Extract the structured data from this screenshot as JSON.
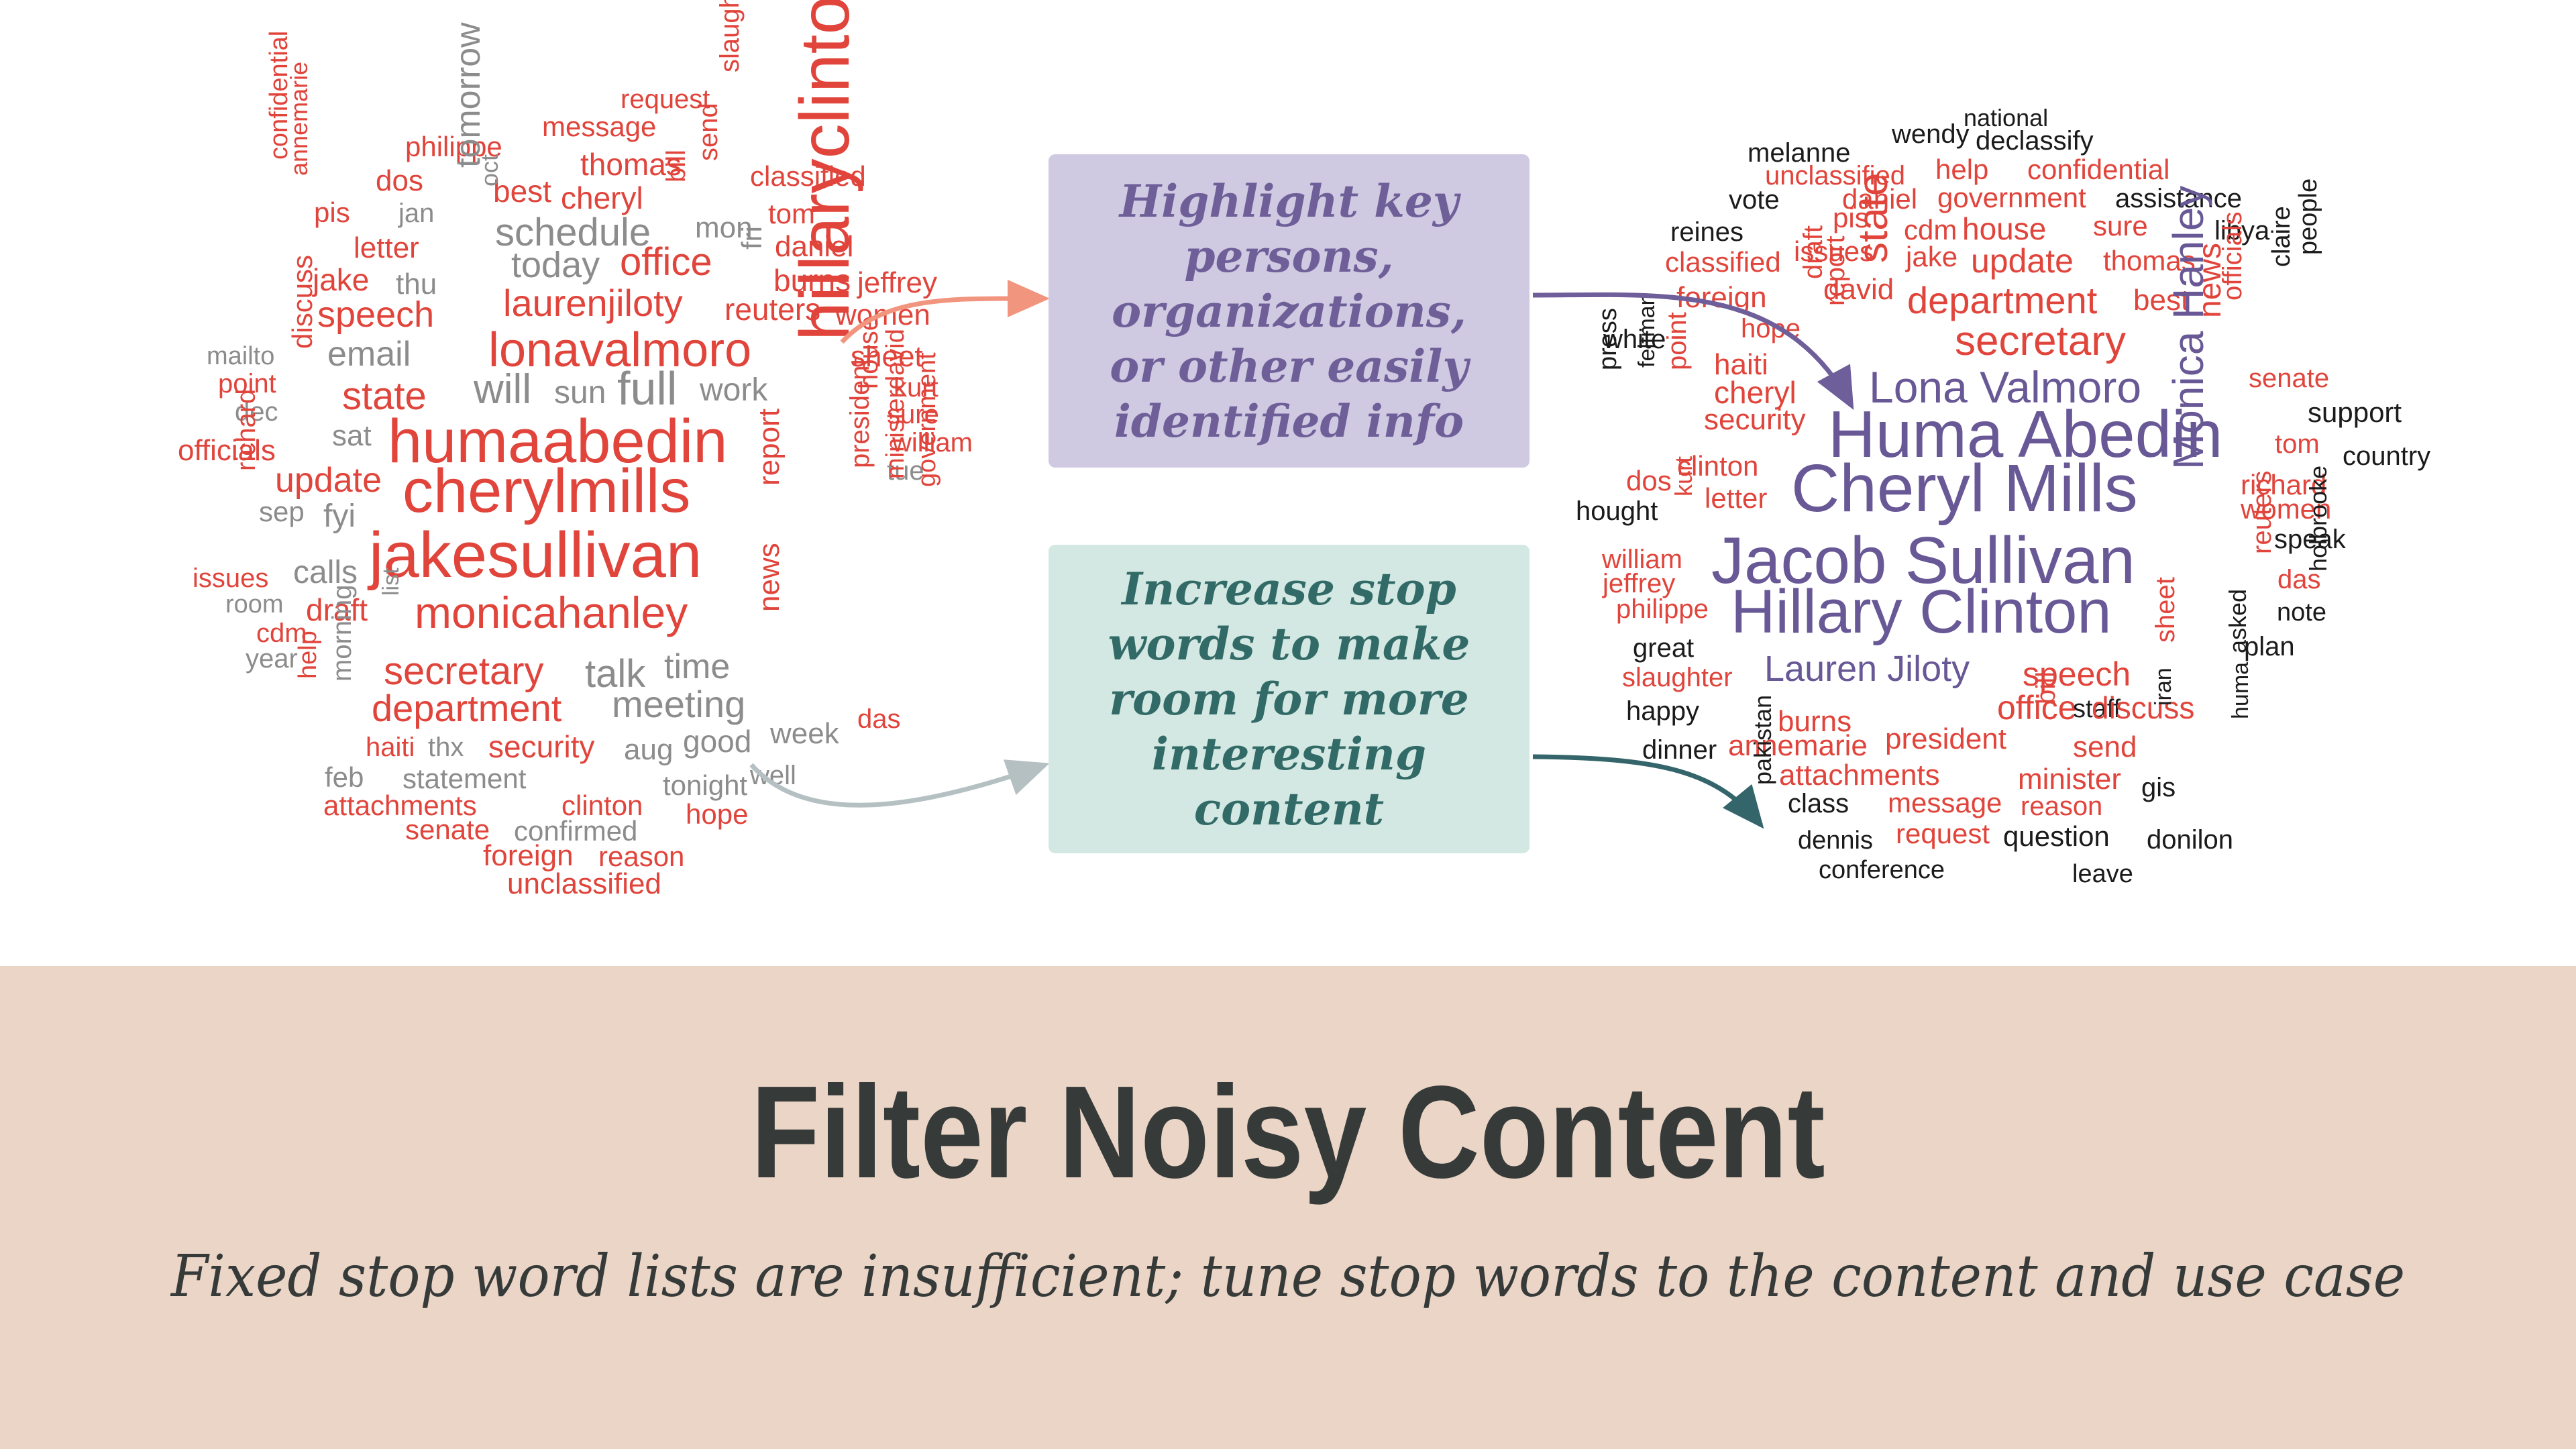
{
  "colors": {
    "cloud_red": "#e0443b",
    "cloud_gray": "#8c8c8c",
    "cloud_purple": "#685896",
    "cloud_black": "#1b1b1b",
    "highlight_box": "#cfc9e2",
    "highlight_text": "#6f5f98",
    "stop_box": "#d3e8e2",
    "stop_text": "#326a67",
    "footer_bg": "#ebd5c6",
    "footer_text": "#363b3a",
    "arrow_salmon": "#f2957f",
    "arrow_gray": "#b5c0c2",
    "arrow_purple": "#6e5e9a",
    "arrow_teal": "#33656a"
  },
  "callouts": {
    "highlight": "Highlight key\npersons,\norganizations,\nor other easily\nidentified info",
    "stop_words": "Increase stop\nwords to make\nroom for more\ninteresting\ncontent"
  },
  "footer": {
    "title": "Filter Noisy Content",
    "subtitle": "Fixed stop word lists are insufficient; tune stop words to the content and use case"
  },
  "left_cloud_words": [
    {
      "t": "request",
      "c": "r"
    },
    {
      "t": "message",
      "c": "r"
    },
    {
      "t": "slaughter",
      "c": "r"
    },
    {
      "t": "philippe",
      "c": "r"
    },
    {
      "t": "thomas",
      "c": "r"
    },
    {
      "t": "send",
      "c": "r"
    },
    {
      "t": "classified",
      "c": "r"
    },
    {
      "t": "dos",
      "c": "r"
    },
    {
      "t": "best",
      "c": "r"
    },
    {
      "t": "cheryl",
      "c": "r"
    },
    {
      "t": "bill",
      "c": "r"
    },
    {
      "t": "tom",
      "c": "r"
    },
    {
      "t": "confidential",
      "c": "r"
    },
    {
      "t": "annemarie",
      "c": "r"
    },
    {
      "t": "pis",
      "c": "r"
    },
    {
      "t": "jan",
      "c": "g"
    },
    {
      "t": "tomorrow",
      "c": "g"
    },
    {
      "t": "oct",
      "c": "g"
    },
    {
      "t": "schedule",
      "c": "g"
    },
    {
      "t": "mon",
      "c": "g"
    },
    {
      "t": "daniel",
      "c": "r"
    },
    {
      "t": "letter",
      "c": "r"
    },
    {
      "t": "today",
      "c": "g"
    },
    {
      "t": "office",
      "c": "r"
    },
    {
      "t": "fri",
      "c": "g"
    },
    {
      "t": "burns",
      "c": "r"
    },
    {
      "t": "jeffrey",
      "c": "r"
    },
    {
      "t": "jake",
      "c": "r"
    },
    {
      "t": "thu",
      "c": "g"
    },
    {
      "t": "laurenjiloty",
      "c": "r"
    },
    {
      "t": "reuters",
      "c": "r"
    },
    {
      "t": "women",
      "c": "r"
    },
    {
      "t": "speech",
      "c": "r"
    },
    {
      "t": "email",
      "c": "g"
    },
    {
      "t": "lonavalmoro",
      "c": "r"
    },
    {
      "t": "sheet",
      "c": "r"
    },
    {
      "t": "mailto",
      "c": "g"
    },
    {
      "t": "discuss",
      "c": "r"
    },
    {
      "t": "kurt",
      "c": "r"
    },
    {
      "t": "point",
      "c": "r"
    },
    {
      "t": "will",
      "c": "g"
    },
    {
      "t": "sun",
      "c": "g"
    },
    {
      "t": "full",
      "c": "g"
    },
    {
      "t": "work",
      "c": "g"
    },
    {
      "t": "state",
      "c": "r"
    },
    {
      "t": "hillaryclinton",
      "c": "r"
    },
    {
      "t": "sure",
      "c": "r"
    },
    {
      "t": "dec",
      "c": "g"
    },
    {
      "t": "house",
      "c": "r"
    },
    {
      "t": "william",
      "c": "r"
    },
    {
      "t": "humaabedin",
      "c": "r"
    },
    {
      "t": "sat",
      "c": "g"
    },
    {
      "t": "officials",
      "c": "r"
    },
    {
      "t": "tue",
      "c": "g"
    },
    {
      "t": "update",
      "c": "r"
    },
    {
      "t": "cherylmills",
      "c": "r"
    },
    {
      "t": "richard",
      "c": "r"
    },
    {
      "t": "sep",
      "c": "g"
    },
    {
      "t": "fyi",
      "c": "g"
    },
    {
      "t": "report",
      "c": "r"
    },
    {
      "t": "president",
      "c": "r"
    },
    {
      "t": "ministerdavid",
      "c": "r"
    },
    {
      "t": "government",
      "c": "r"
    },
    {
      "t": "jakesullivan",
      "c": "r"
    },
    {
      "t": "issues",
      "c": "r"
    },
    {
      "t": "calls",
      "c": "g"
    },
    {
      "t": "room",
      "c": "g"
    },
    {
      "t": "list",
      "c": "g"
    },
    {
      "t": "draft",
      "c": "r"
    },
    {
      "t": "monicahanley",
      "c": "r"
    },
    {
      "t": "news",
      "c": "r"
    },
    {
      "t": "cdm",
      "c": "r"
    },
    {
      "t": "year",
      "c": "g"
    },
    {
      "t": "secretary",
      "c": "r"
    },
    {
      "t": "talk",
      "c": "g"
    },
    {
      "t": "time",
      "c": "g"
    },
    {
      "t": "help",
      "c": "r"
    },
    {
      "t": "morning",
      "c": "g"
    },
    {
      "t": "department",
      "c": "r"
    },
    {
      "t": "meeting",
      "c": "g"
    },
    {
      "t": "das",
      "c": "r"
    },
    {
      "t": "haiti",
      "c": "r"
    },
    {
      "t": "thx",
      "c": "g"
    },
    {
      "t": "security",
      "c": "r"
    },
    {
      "t": "aug",
      "c": "g"
    },
    {
      "t": "good",
      "c": "g"
    },
    {
      "t": "week",
      "c": "g"
    },
    {
      "t": "feb",
      "c": "g"
    },
    {
      "t": "statement",
      "c": "g"
    },
    {
      "t": "tonight",
      "c": "g"
    },
    {
      "t": "well",
      "c": "g"
    },
    {
      "t": "attachments",
      "c": "r"
    },
    {
      "t": "clinton",
      "c": "r"
    },
    {
      "t": "hope",
      "c": "r"
    },
    {
      "t": "senate",
      "c": "r"
    },
    {
      "t": "confirmed",
      "c": "g"
    },
    {
      "t": "foreign",
      "c": "r"
    },
    {
      "t": "reason",
      "c": "r"
    },
    {
      "t": "unclassified",
      "c": "r"
    }
  ],
  "right_cloud_words": [
    {
      "t": "national",
      "c": "k"
    },
    {
      "t": "wendy",
      "c": "k"
    },
    {
      "t": "declassify",
      "c": "k"
    },
    {
      "t": "melanne",
      "c": "k"
    },
    {
      "t": "unclassified",
      "c": "r"
    },
    {
      "t": "help",
      "c": "r"
    },
    {
      "t": "confidential",
      "c": "r"
    },
    {
      "t": "vote",
      "c": "k"
    },
    {
      "t": "daniel",
      "c": "r"
    },
    {
      "t": "government",
      "c": "r"
    },
    {
      "t": "assistance",
      "c": "k"
    },
    {
      "t": "pis",
      "c": "r"
    },
    {
      "t": "reines",
      "c": "k"
    },
    {
      "t": "cdm",
      "c": "r"
    },
    {
      "t": "house",
      "c": "r"
    },
    {
      "t": "sure",
      "c": "r"
    },
    {
      "t": "libya",
      "c": "k"
    },
    {
      "t": "issues",
      "c": "r"
    },
    {
      "t": "jake",
      "c": "r"
    },
    {
      "t": "classified",
      "c": "r"
    },
    {
      "t": "update",
      "c": "r"
    },
    {
      "t": "thomas",
      "c": "r"
    },
    {
      "t": "david",
      "c": "r"
    },
    {
      "t": "state",
      "c": "r"
    },
    {
      "t": "claire",
      "c": "k"
    },
    {
      "t": "people",
      "c": "k"
    },
    {
      "t": "foreign",
      "c": "r"
    },
    {
      "t": "department",
      "c": "r"
    },
    {
      "t": "best",
      "c": "r"
    },
    {
      "t": "hope",
      "c": "r"
    },
    {
      "t": "draft",
      "c": "r"
    },
    {
      "t": "report",
      "c": "r"
    },
    {
      "t": "white",
      "c": "k"
    },
    {
      "t": "secretary",
      "c": "r"
    },
    {
      "t": "news",
      "c": "r"
    },
    {
      "t": "officials",
      "c": "r"
    },
    {
      "t": "haiti",
      "c": "r"
    },
    {
      "t": "feltman",
      "c": "k"
    },
    {
      "t": "press",
      "c": "k"
    },
    {
      "t": "point",
      "c": "r"
    },
    {
      "t": "cheryl",
      "c": "r"
    },
    {
      "t": "Lona Valmoro",
      "c": "p"
    },
    {
      "t": "senate",
      "c": "r"
    },
    {
      "t": "security",
      "c": "r"
    },
    {
      "t": "support",
      "c": "k"
    },
    {
      "t": "Huma Abedin",
      "c": "p"
    },
    {
      "t": "tom",
      "c": "r"
    },
    {
      "t": "country",
      "c": "k"
    },
    {
      "t": "clinton",
      "c": "r"
    },
    {
      "t": "dos",
      "c": "r"
    },
    {
      "t": "Cheryl Mills",
      "c": "p"
    },
    {
      "t": "richard",
      "c": "r"
    },
    {
      "t": "letter",
      "c": "r"
    },
    {
      "t": "kurt",
      "c": "r"
    },
    {
      "t": "women",
      "c": "r"
    },
    {
      "t": "hought",
      "c": "k"
    },
    {
      "t": "Monica Hanley",
      "c": "p"
    },
    {
      "t": "speak",
      "c": "k"
    },
    {
      "t": "william",
      "c": "r"
    },
    {
      "t": "Jacob Sullivan",
      "c": "p"
    },
    {
      "t": "jeffrey",
      "c": "r"
    },
    {
      "t": "reuters",
      "c": "r"
    },
    {
      "t": "das",
      "c": "r"
    },
    {
      "t": "philippe",
      "c": "r"
    },
    {
      "t": "Hillary Clinton",
      "c": "p"
    },
    {
      "t": "note",
      "c": "k"
    },
    {
      "t": "holbrooke",
      "c": "k"
    },
    {
      "t": "great",
      "c": "k"
    },
    {
      "t": "slaughter",
      "c": "r"
    },
    {
      "t": "Lauren Jiloty",
      "c": "p"
    },
    {
      "t": "speech",
      "c": "r"
    },
    {
      "t": "sheet",
      "c": "r"
    },
    {
      "t": "plan",
      "c": "k"
    },
    {
      "t": "asked",
      "c": "k"
    },
    {
      "t": "happy",
      "c": "k"
    },
    {
      "t": "office",
      "c": "r"
    },
    {
      "t": "staff",
      "c": "k"
    },
    {
      "t": "discuss",
      "c": "r"
    },
    {
      "t": "iran",
      "c": "k"
    },
    {
      "t": "burns",
      "c": "r"
    },
    {
      "t": "president",
      "c": "r"
    },
    {
      "t": "bill",
      "c": "r"
    },
    {
      "t": "send",
      "c": "r"
    },
    {
      "t": "dinner",
      "c": "k"
    },
    {
      "t": "annemarie",
      "c": "r"
    },
    {
      "t": "attachments",
      "c": "r"
    },
    {
      "t": "huma",
      "c": "k"
    },
    {
      "t": "minister",
      "c": "r"
    },
    {
      "t": "gis",
      "c": "k"
    },
    {
      "t": "class",
      "c": "k"
    },
    {
      "t": "message",
      "c": "r"
    },
    {
      "t": "reason",
      "c": "r"
    },
    {
      "t": "pakistan",
      "c": "k"
    },
    {
      "t": "dennis",
      "c": "k"
    },
    {
      "t": "request",
      "c": "r"
    },
    {
      "t": "question",
      "c": "k"
    },
    {
      "t": "donilon",
      "c": "k"
    },
    {
      "t": "conference",
      "c": "k"
    },
    {
      "t": "leave",
      "c": "k"
    }
  ]
}
